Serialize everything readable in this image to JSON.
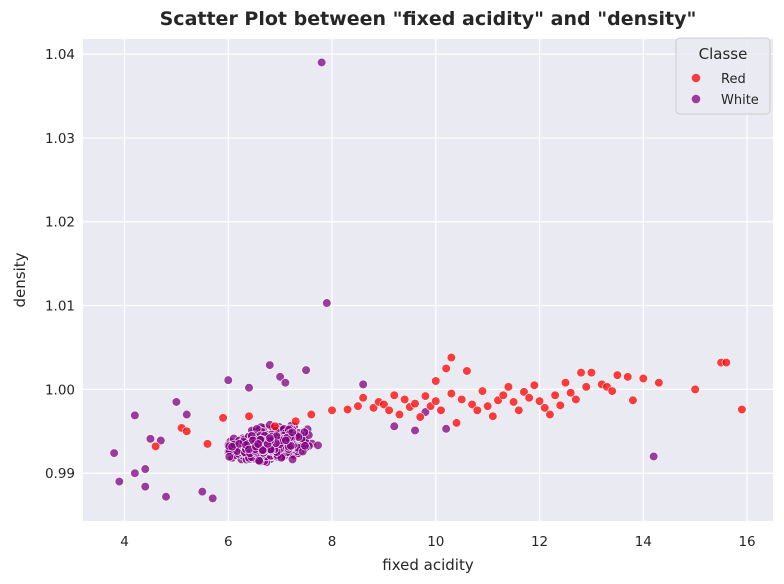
{
  "chart_data": {
    "type": "scatter",
    "title": "Scatter Plot between \"fixed acidity\" and \"density\"",
    "xlabel": "fixed acidity",
    "ylabel": "density",
    "xlim": [
      3.2,
      16.5
    ],
    "ylim": [
      0.9843,
      1.0418
    ],
    "xticks": [
      4,
      6,
      8,
      10,
      12,
      14,
      16
    ],
    "yticks": [
      0.99,
      1.0,
      1.01,
      1.02,
      1.03,
      1.04
    ],
    "xtick_labels": [
      "4",
      "6",
      "8",
      "10",
      "12",
      "14",
      "16"
    ],
    "ytick_labels": [
      "0.99",
      "1.00",
      "1.01",
      "1.02",
      "1.03",
      "1.04"
    ],
    "grid": true,
    "legend": {
      "title": "Classe",
      "placement": "top-right"
    },
    "series": [
      {
        "name": "Red",
        "color": "#ff0000",
        "points": [
          [
            4.6,
            0.9932
          ],
          [
            5.1,
            0.9954
          ],
          [
            5.2,
            0.995
          ],
          [
            5.6,
            0.9935
          ],
          [
            5.9,
            0.9966
          ],
          [
            6.4,
            0.9968
          ],
          [
            6.9,
            0.9956
          ],
          [
            7.3,
            0.9962
          ],
          [
            7.6,
            0.997
          ],
          [
            8.0,
            0.9975
          ],
          [
            8.3,
            0.9976
          ],
          [
            8.5,
            0.998
          ],
          [
            8.6,
            0.999
          ],
          [
            8.8,
            0.9978
          ],
          [
            8.9,
            0.9985
          ],
          [
            9.0,
            0.9982
          ],
          [
            9.1,
            0.9975
          ],
          [
            9.2,
            0.9993
          ],
          [
            9.3,
            0.997
          ],
          [
            9.4,
            0.9988
          ],
          [
            9.5,
            0.9979
          ],
          [
            9.6,
            0.9983
          ],
          [
            9.7,
            0.9967
          ],
          [
            9.8,
            0.9992
          ],
          [
            9.9,
            0.998
          ],
          [
            10.0,
            1.001
          ],
          [
            10.0,
            0.9986
          ],
          [
            10.1,
            0.9975
          ],
          [
            10.2,
            1.0025
          ],
          [
            10.3,
            0.9995
          ],
          [
            10.3,
            1.0038
          ],
          [
            10.4,
            0.996
          ],
          [
            10.5,
            0.9988
          ],
          [
            10.6,
            1.0022
          ],
          [
            10.7,
            0.9982
          ],
          [
            10.8,
            0.9975
          ],
          [
            10.9,
            0.9998
          ],
          [
            11.0,
            0.998
          ],
          [
            11.1,
            0.9968
          ],
          [
            11.2,
            0.9987
          ],
          [
            11.3,
            0.9993
          ],
          [
            11.4,
            1.0003
          ],
          [
            11.5,
            0.9985
          ],
          [
            11.6,
            0.9975
          ],
          [
            11.7,
            0.9997
          ],
          [
            11.8,
            0.999
          ],
          [
            11.9,
            1.0005
          ],
          [
            12.0,
            0.9986
          ],
          [
            12.1,
            0.9978
          ],
          [
            12.2,
            0.997
          ],
          [
            12.3,
            0.9993
          ],
          [
            12.4,
            0.9981
          ],
          [
            12.5,
            1.0008
          ],
          [
            12.6,
            0.9996
          ],
          [
            12.7,
            0.9988
          ],
          [
            12.8,
            1.002
          ],
          [
            12.9,
            1.0003
          ],
          [
            13.0,
            1.002
          ],
          [
            13.2,
            1.0006
          ],
          [
            13.3,
            1.0003
          ],
          [
            13.4,
            0.9998
          ],
          [
            13.5,
            1.0017
          ],
          [
            13.7,
            1.0015
          ],
          [
            13.8,
            0.9987
          ],
          [
            14.0,
            1.0013
          ],
          [
            14.3,
            1.0008
          ],
          [
            15.0,
            1.0
          ],
          [
            15.5,
            1.0032
          ],
          [
            15.6,
            1.0032
          ],
          [
            15.9,
            0.9976
          ]
        ]
      },
      {
        "name": "White",
        "color": "#800080",
        "points": [
          [
            3.8,
            0.9924
          ],
          [
            3.9,
            0.989
          ],
          [
            4.2,
            0.9969
          ],
          [
            4.2,
            0.99
          ],
          [
            4.4,
            0.9884
          ],
          [
            4.4,
            0.9905
          ],
          [
            4.5,
            0.9941
          ],
          [
            4.7,
            0.9939
          ],
          [
            4.8,
            0.9872
          ],
          [
            5.0,
            0.9985
          ],
          [
            5.2,
            0.997
          ],
          [
            5.5,
            0.9878
          ],
          [
            5.7,
            0.987
          ],
          [
            6.0,
            1.0011
          ],
          [
            6.4,
            1.0002
          ],
          [
            6.8,
            1.0029
          ],
          [
            7.0,
            1.0015
          ],
          [
            7.1,
            1.0008
          ],
          [
            7.5,
            1.0023
          ],
          [
            7.8,
            1.039
          ],
          [
            7.9,
            1.0103
          ],
          [
            8.6,
            1.0006
          ],
          [
            9.2,
            0.9956
          ],
          [
            9.6,
            0.9951
          ],
          [
            9.8,
            0.9973
          ],
          [
            10.2,
            0.9953
          ],
          [
            14.2,
            0.992
          ]
        ],
        "dense_region": {
          "x": [
            4.6,
            9.6
          ],
          "y": [
            0.9878,
            1.0005
          ],
          "center": [
            6.8,
            0.9935
          ]
        }
      }
    ]
  }
}
